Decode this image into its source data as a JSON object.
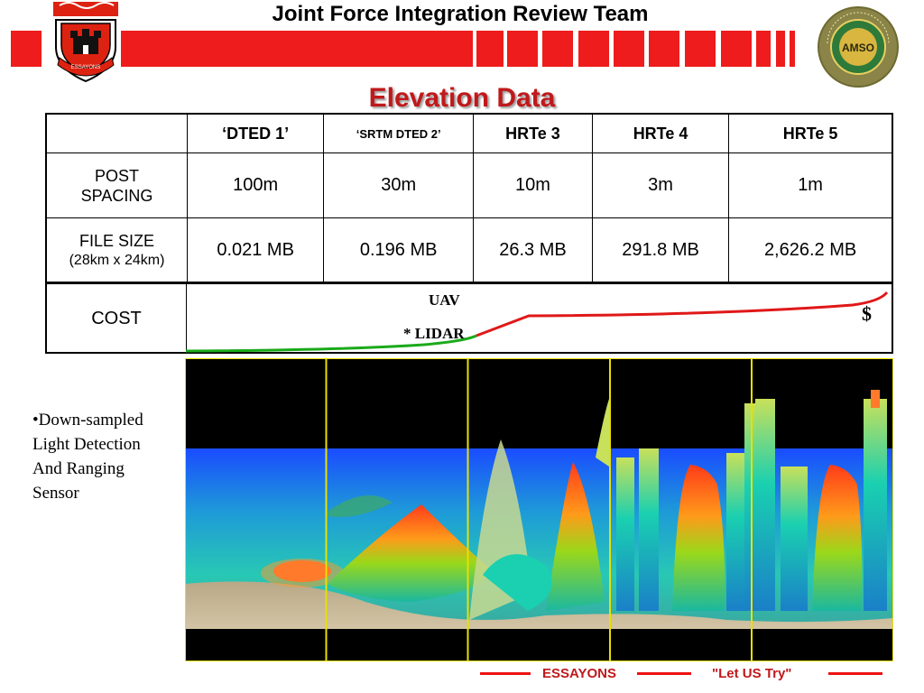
{
  "header": {
    "title": "Joint Force Integration Review Team",
    "left_logo": "castle-emblem",
    "left_logo_text": "ESSAYONS",
    "right_logo": "amso-seal",
    "right_logo_text": "AMSO",
    "right_logo_ring_text": "United States Army Model & Simulation Office"
  },
  "section_title": "Elevation Data",
  "table": {
    "columns": [
      "",
      "‘DTED 1’",
      "‘SRTM DTED 2’",
      "HRTe 3",
      "HRTe 4",
      "HRTe 5"
    ],
    "rows": [
      {
        "label": "POST SPACING",
        "sublabel": "",
        "values": [
          "100m",
          "30m",
          "10m",
          "3m",
          "1m"
        ]
      },
      {
        "label": "FILE SIZE",
        "sublabel": "(28km x 24km)",
        "values": [
          "0.021 MB",
          "0.196 MB",
          "26.3 MB",
          "291.8 MB",
          "2,626.2 MB"
        ]
      }
    ]
  },
  "cost": {
    "label": "COST",
    "uav_label": "UAV",
    "lidar_label": "* LIDAR",
    "dollar_label": "$"
  },
  "side_note": [
    "•Down-sampled",
    "Light Detection",
    "And Ranging",
    "Sensor"
  ],
  "footer": {
    "motto_left": "ESSAYONS",
    "motto_right": "\"Let  US  Try\""
  },
  "colors": {
    "accent_red": "#ee1c1c",
    "title_red": "#c0191b",
    "curve_green": "#1aaa1a",
    "curve_red": "#e01818",
    "panel_divider": "#e8e000"
  }
}
